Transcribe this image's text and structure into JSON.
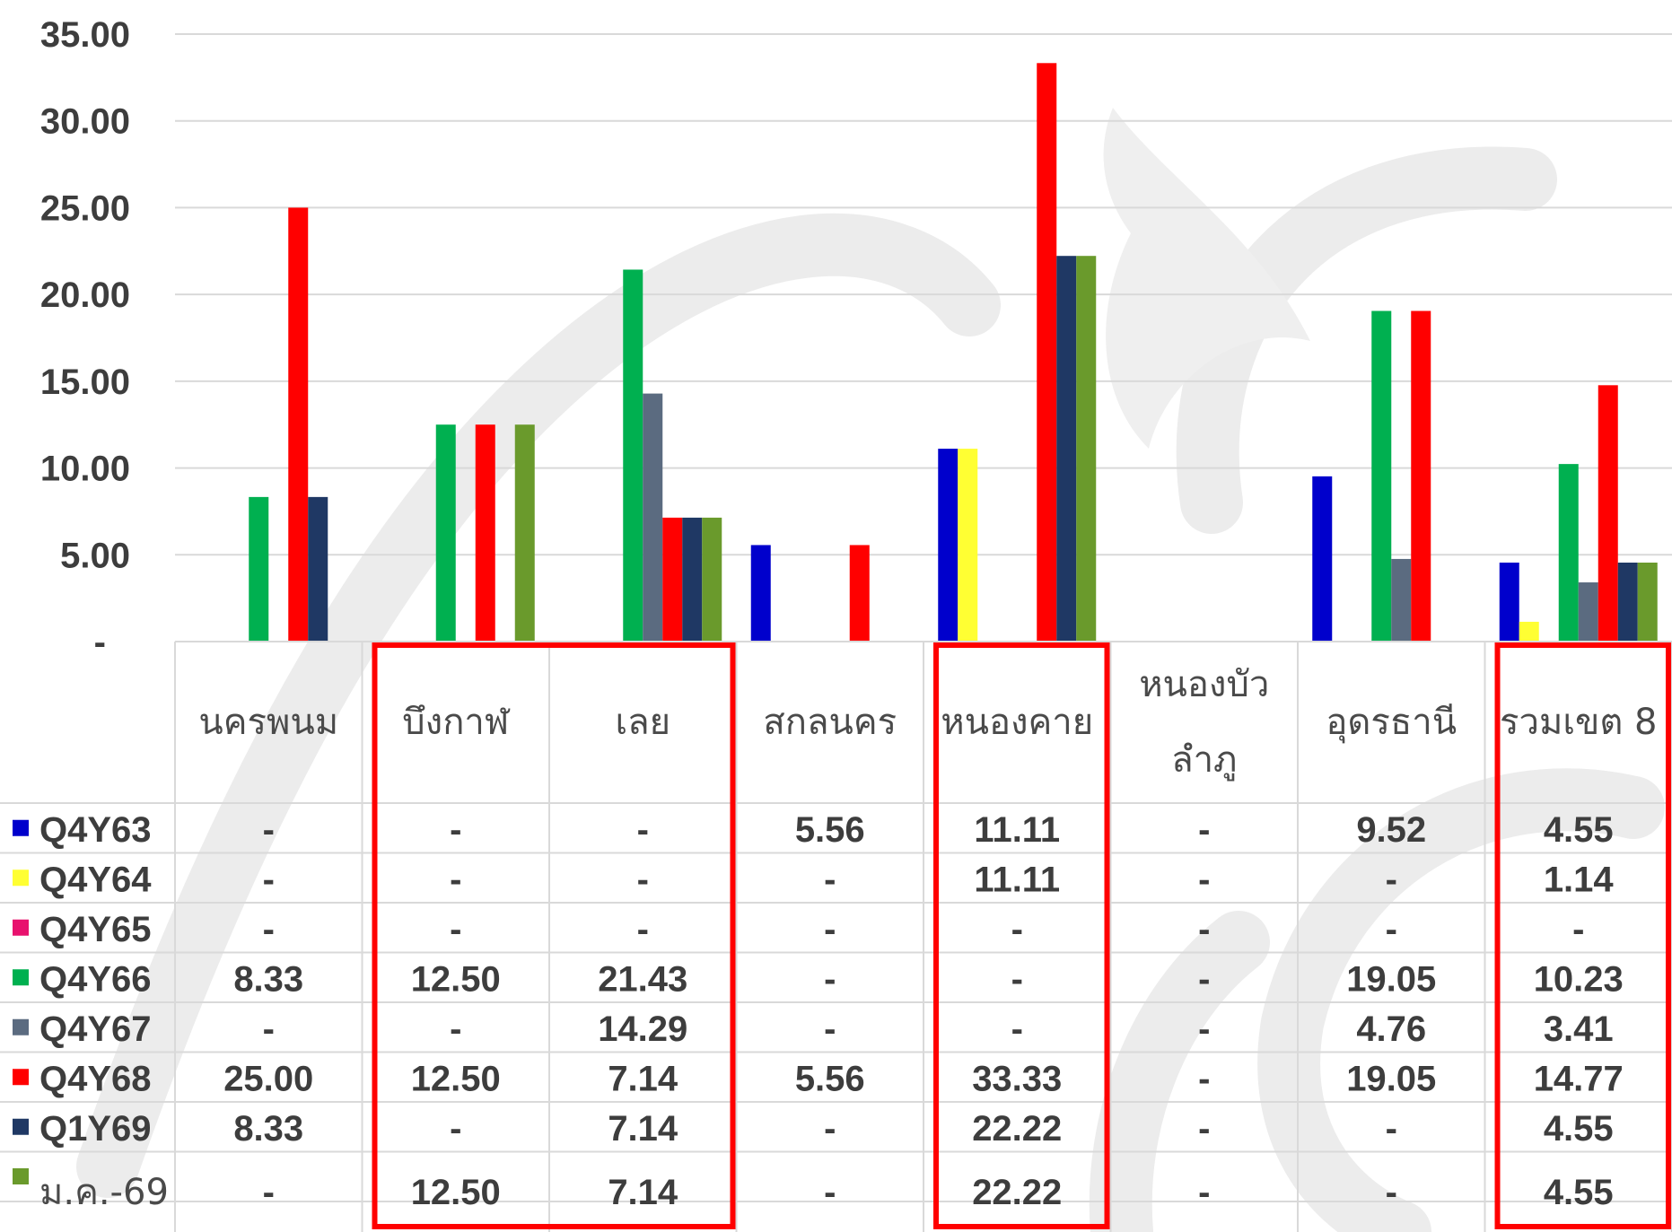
{
  "chart_data": {
    "type": "bar",
    "title": "",
    "xlabel": "",
    "ylabel": "",
    "ylim": [
      0,
      35
    ],
    "y_ticks": [
      "35.00",
      "30.00",
      "25.00",
      "20.00",
      "15.00",
      "10.00",
      "5.00",
      "-"
    ],
    "grid": true,
    "legend": "data-table-below",
    "categories": [
      "นครพนม",
      "บึงกาฬ",
      "เลย",
      "สกลนคร",
      "หนองคาย",
      "หนองบัวลำภู",
      "อุดรธานี",
      "รวมเขต 8"
    ],
    "category_lines": [
      [
        "นครพนม"
      ],
      [
        "บึงกาฬ"
      ],
      [
        "เลย"
      ],
      [
        "สกลนคร"
      ],
      [
        "หนองคาย"
      ],
      [
        "หนองบัว",
        "ลำภู"
      ],
      [
        "อุดรธานี"
      ],
      [
        "รวมเขต 8"
      ]
    ],
    "highlighted_categories": [
      "บึงกาฬ",
      "เลย",
      "หนองคาย",
      "รวมเขต 8"
    ],
    "highlight_color": "#ff0000",
    "series": [
      {
        "name": "Q4Y63",
        "color": "#0000cc",
        "values": [
          0,
          0,
          0,
          5.56,
          11.11,
          0,
          9.52,
          4.55
        ],
        "labels": [
          "-",
          "-",
          "-",
          "5.56",
          "11.11",
          "-",
          "9.52",
          "4.55"
        ]
      },
      {
        "name": "Q4Y64",
        "color": "#ffff33",
        "values": [
          0,
          0,
          0,
          0,
          11.11,
          0,
          0,
          1.14
        ],
        "labels": [
          "-",
          "-",
          "-",
          "-",
          "11.11",
          "-",
          "-",
          "1.14"
        ]
      },
      {
        "name": "Q4Y65",
        "color": "#e8126e",
        "values": [
          0,
          0,
          0,
          0,
          0,
          0,
          0,
          0
        ],
        "labels": [
          "-",
          "-",
          "-",
          "-",
          "-",
          "-",
          "-",
          "-"
        ]
      },
      {
        "name": "Q4Y66",
        "color": "#00b050",
        "values": [
          8.33,
          12.5,
          21.43,
          0,
          0,
          0,
          19.05,
          10.23
        ],
        "labels": [
          "8.33",
          "12.50",
          "21.43",
          "-",
          "-",
          "-",
          "19.05",
          "10.23"
        ]
      },
      {
        "name": "Q4Y67",
        "color": "#5b6b80",
        "values": [
          0,
          0,
          14.29,
          0,
          0,
          0,
          4.76,
          3.41
        ],
        "labels": [
          "-",
          "-",
          "14.29",
          "-",
          "-",
          "-",
          "4.76",
          "3.41"
        ]
      },
      {
        "name": "Q4Y68",
        "color": "#ff0000",
        "values": [
          25.0,
          12.5,
          7.14,
          5.56,
          33.33,
          0,
          19.05,
          14.77
        ],
        "labels": [
          "25.00",
          "12.50",
          "7.14",
          "5.56",
          "33.33",
          "-",
          "19.05",
          "14.77"
        ]
      },
      {
        "name": "Q1Y69",
        "color": "#1f3864",
        "values": [
          8.33,
          0,
          7.14,
          0,
          22.22,
          0,
          0,
          4.55
        ],
        "labels": [
          "8.33",
          "-",
          "7.14",
          "-",
          "22.22",
          "-",
          "-",
          "4.55"
        ]
      },
      {
        "name": "ม.ค.-69",
        "color": "#6a9a2c",
        "values": [
          0,
          12.5,
          7.14,
          0,
          22.22,
          0,
          0,
          4.55
        ],
        "labels": [
          "-",
          "12.50",
          "7.14",
          "-",
          "22.22",
          "-",
          "-",
          "4.55"
        ]
      }
    ]
  }
}
